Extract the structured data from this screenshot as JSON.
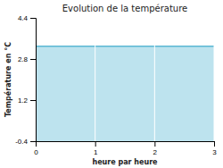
{
  "chart_data": {
    "type": "area",
    "title": "Evolution de la température",
    "x_label": "heure par heure",
    "y_label": "Température en °C",
    "x": [
      0,
      3
    ],
    "values": [
      3.3,
      3.3
    ],
    "color": "#5bb8d4",
    "xlim": [
      0,
      3
    ],
    "ylim": [
      -0.4,
      4.4
    ],
    "xticks": [
      0,
      1,
      2,
      3
    ],
    "yticks": [
      -0.4,
      1.2,
      2.8,
      4.4
    ],
    "grid": "x"
  }
}
